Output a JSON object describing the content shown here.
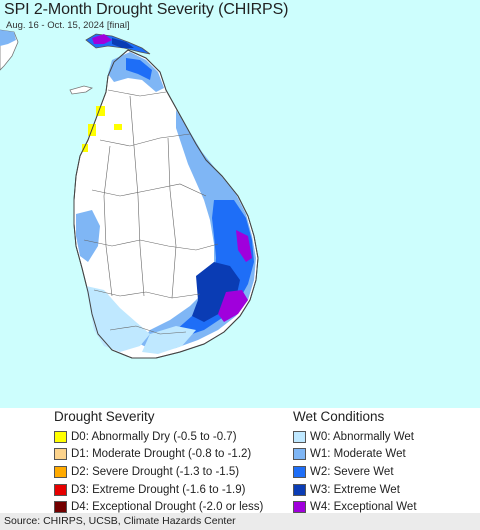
{
  "map": {
    "title": "SPI 2-Month Drought Severity (CHIRPS)",
    "subtitle": "Aug. 16 - Oct. 15, 2024 [final]",
    "water_color": "#cdfefd",
    "land_color": "#ffffff",
    "boundary_color": "#555555"
  },
  "legend": {
    "drought_heading": "Drought Severity",
    "wet_heading": "Wet Conditions",
    "drought_items": [
      {
        "label": "D0: Abnormally Dry (-0.5 to -0.7)",
        "color": "#ffff00"
      },
      {
        "label": "D1: Moderate Drought (-0.8 to -1.2)",
        "color": "#fcd38c"
      },
      {
        "label": "D2: Severe Drought (-1.3 to -1.5)",
        "color": "#ffaa00"
      },
      {
        "label": "D3: Extreme Drought (-1.6 to -1.9)",
        "color": "#e60000"
      },
      {
        "label": "D4: Exceptional Drought (-2.0 or less)",
        "color": "#730000"
      }
    ],
    "wet_items": [
      {
        "label": "W0: Abnormally Wet",
        "color": "#bfe8ff"
      },
      {
        "label": "W1: Moderate Wet",
        "color": "#7fb6f5"
      },
      {
        "label": "W2: Severe Wet",
        "color": "#1e6ef7"
      },
      {
        "label": "W3: Extreme Wet",
        "color": "#0a3cb4"
      },
      {
        "label": "W4: Exceptional Wet",
        "color": "#a000dc"
      }
    ]
  },
  "footer": {
    "source": "Source: CHIRPS, UCSB, Climate Hazards Center"
  }
}
